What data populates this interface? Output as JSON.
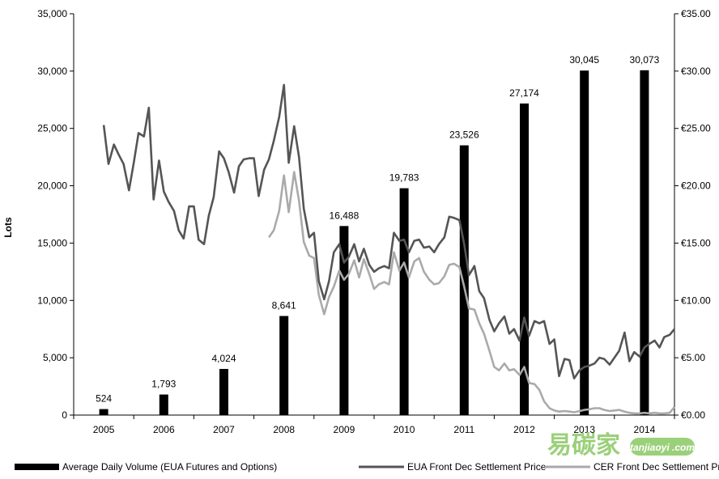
{
  "chart_data": {
    "type": "bar+line",
    "ylabel_left": "Lots",
    "ylim_left": [
      0,
      35000
    ],
    "yticks_left": [
      "0",
      "5,000",
      "10,000",
      "15,000",
      "20,000",
      "25,000",
      "30,000",
      "35,000"
    ],
    "ylim_right": [
      0,
      35
    ],
    "yticks_right": [
      "€0.00",
      "€5.00",
      "€10.00",
      "€15.00",
      "€20.00",
      "€25.00",
      "€30.00",
      "€35.00"
    ],
    "categories": [
      "2005",
      "2006",
      "2007",
      "2008",
      "2009",
      "2010",
      "2011",
      "2012",
      "2013",
      "2014"
    ],
    "bars": {
      "name": "Average Daily Volume (EUA Futures and Options)",
      "color": "#000000",
      "values": [
        524,
        1793,
        4024,
        8641,
        16488,
        19783,
        23526,
        27174,
        30045,
        30073
      ],
      "labels": [
        "524",
        "1,793",
        "4,024",
        "8,641",
        "16,488",
        "19,783",
        "23,526",
        "27,174",
        "30,045",
        "30,073"
      ]
    },
    "eua": {
      "name": "EUA Front Dec Settlement Price",
      "color": "#555555",
      "points": [
        [
          2005.0,
          25.3
        ],
        [
          2005.08,
          21.9
        ],
        [
          2005.17,
          23.6
        ],
        [
          2005.25,
          22.7
        ],
        [
          2005.33,
          21.9
        ],
        [
          2005.42,
          19.6
        ],
        [
          2005.5,
          22.0
        ],
        [
          2005.58,
          24.6
        ],
        [
          2005.67,
          24.3
        ],
        [
          2005.75,
          26.8
        ],
        [
          2005.83,
          18.8
        ],
        [
          2005.92,
          22.2
        ],
        [
          2006.0,
          19.5
        ],
        [
          2006.08,
          18.6
        ],
        [
          2006.17,
          17.8
        ],
        [
          2006.25,
          16.1
        ],
        [
          2006.33,
          15.4
        ],
        [
          2006.42,
          18.2
        ],
        [
          2006.5,
          18.2
        ],
        [
          2006.58,
          15.3
        ],
        [
          2006.67,
          14.9
        ],
        [
          2006.75,
          17.4
        ],
        [
          2006.83,
          19.0
        ],
        [
          2006.92,
          23.0
        ],
        [
          2007.0,
          22.4
        ],
        [
          2007.08,
          21.2
        ],
        [
          2007.17,
          19.4
        ],
        [
          2007.25,
          21.7
        ],
        [
          2007.33,
          22.3
        ],
        [
          2007.42,
          22.4
        ],
        [
          2007.5,
          22.4
        ],
        [
          2007.58,
          19.1
        ],
        [
          2007.67,
          21.4
        ],
        [
          2007.75,
          22.3
        ],
        [
          2007.83,
          23.9
        ],
        [
          2007.92,
          26.0
        ],
        [
          2008.0,
          28.8
        ],
        [
          2008.08,
          22.0
        ],
        [
          2008.17,
          25.2
        ],
        [
          2008.25,
          22.5
        ],
        [
          2008.33,
          18.0
        ],
        [
          2008.42,
          15.5
        ],
        [
          2008.5,
          15.9
        ],
        [
          2008.58,
          11.7
        ],
        [
          2008.67,
          10.1
        ],
        [
          2008.75,
          11.7
        ],
        [
          2008.83,
          14.2
        ],
        [
          2008.92,
          14.9
        ],
        [
          2009.0,
          13.3
        ],
        [
          2009.08,
          13.8
        ],
        [
          2009.17,
          14.9
        ],
        [
          2009.25,
          13.4
        ],
        [
          2009.33,
          14.5
        ],
        [
          2009.42,
          13.1
        ],
        [
          2009.5,
          12.5
        ],
        [
          2009.58,
          12.8
        ],
        [
          2009.67,
          13.0
        ],
        [
          2009.75,
          12.8
        ],
        [
          2009.83,
          15.9
        ],
        [
          2009.92,
          15.2
        ],
        [
          2010.0,
          15.3
        ],
        [
          2010.08,
          14.2
        ],
        [
          2010.17,
          15.2
        ],
        [
          2010.25,
          15.3
        ],
        [
          2010.33,
          14.6
        ],
        [
          2010.42,
          14.7
        ],
        [
          2010.5,
          14.2
        ],
        [
          2010.58,
          14.9
        ],
        [
          2010.67,
          15.5
        ],
        [
          2010.75,
          17.3
        ],
        [
          2010.83,
          17.2
        ],
        [
          2010.92,
          17.0
        ],
        [
          2011.0,
          14.9
        ],
        [
          2011.08,
          12.2
        ],
        [
          2011.17,
          13.0
        ],
        [
          2011.25,
          10.8
        ],
        [
          2011.33,
          10.2
        ],
        [
          2011.42,
          8.3
        ],
        [
          2011.5,
          7.3
        ],
        [
          2011.58,
          8.0
        ],
        [
          2011.67,
          8.6
        ],
        [
          2011.75,
          7.1
        ],
        [
          2011.83,
          7.5
        ],
        [
          2011.92,
          6.5
        ],
        [
          2012.0,
          8.5
        ],
        [
          2012.08,
          6.9
        ],
        [
          2012.17,
          8.2
        ],
        [
          2012.25,
          8.0
        ],
        [
          2012.33,
          8.2
        ],
        [
          2012.42,
          6.2
        ],
        [
          2012.5,
          6.6
        ],
        [
          2012.58,
          3.4
        ],
        [
          2012.67,
          4.9
        ],
        [
          2012.75,
          4.8
        ],
        [
          2012.83,
          3.2
        ],
        [
          2012.92,
          3.9
        ],
        [
          2013.0,
          4.2
        ],
        [
          2013.08,
          4.3
        ],
        [
          2013.17,
          4.5
        ],
        [
          2013.25,
          5.0
        ],
        [
          2013.33,
          4.9
        ],
        [
          2013.42,
          4.4
        ],
        [
          2013.5,
          5.0
        ],
        [
          2013.58,
          5.6
        ],
        [
          2013.67,
          7.2
        ],
        [
          2013.75,
          4.7
        ],
        [
          2013.83,
          5.5
        ],
        [
          2013.92,
          5.1
        ],
        [
          2014.0,
          5.9
        ],
        [
          2014.08,
          6.2
        ],
        [
          2014.17,
          6.5
        ],
        [
          2014.25,
          5.9
        ],
        [
          2014.33,
          6.8
        ],
        [
          2014.42,
          7.0
        ],
        [
          2014.5,
          7.5
        ]
      ]
    },
    "cer": {
      "name": "CER Front Dec Settlement Price",
      "color": "#aaaaaa",
      "points": [
        [
          2007.75,
          15.5
        ],
        [
          2007.83,
          16.1
        ],
        [
          2007.92,
          17.8
        ],
        [
          2008.0,
          20.9
        ],
        [
          2008.08,
          17.7
        ],
        [
          2008.17,
          21.2
        ],
        [
          2008.25,
          18.7
        ],
        [
          2008.33,
          15.1
        ],
        [
          2008.42,
          13.9
        ],
        [
          2008.5,
          13.7
        ],
        [
          2008.58,
          10.5
        ],
        [
          2008.67,
          8.8
        ],
        [
          2008.75,
          10.3
        ],
        [
          2008.83,
          11.2
        ],
        [
          2008.92,
          12.6
        ],
        [
          2009.0,
          11.8
        ],
        [
          2009.08,
          12.3
        ],
        [
          2009.17,
          13.5
        ],
        [
          2009.25,
          12.0
        ],
        [
          2009.33,
          13.6
        ],
        [
          2009.42,
          12.3
        ],
        [
          2009.5,
          11.0
        ],
        [
          2009.58,
          11.4
        ],
        [
          2009.67,
          11.6
        ],
        [
          2009.75,
          11.4
        ],
        [
          2009.83,
          14.2
        ],
        [
          2009.92,
          12.6
        ],
        [
          2010.0,
          13.3
        ],
        [
          2010.08,
          12.0
        ],
        [
          2010.17,
          13.4
        ],
        [
          2010.25,
          13.7
        ],
        [
          2010.33,
          12.5
        ],
        [
          2010.42,
          11.8
        ],
        [
          2010.5,
          11.4
        ],
        [
          2010.58,
          11.5
        ],
        [
          2010.67,
          12.1
        ],
        [
          2010.75,
          13.1
        ],
        [
          2010.83,
          13.2
        ],
        [
          2010.92,
          12.9
        ],
        [
          2011.0,
          11.2
        ],
        [
          2011.08,
          9.3
        ],
        [
          2011.17,
          9.2
        ],
        [
          2011.25,
          8.0
        ],
        [
          2011.33,
          7.1
        ],
        [
          2011.42,
          5.6
        ],
        [
          2011.5,
          4.2
        ],
        [
          2011.58,
          3.9
        ],
        [
          2011.67,
          4.5
        ],
        [
          2011.75,
          3.9
        ],
        [
          2011.83,
          4.0
        ],
        [
          2011.92,
          3.5
        ],
        [
          2012.0,
          4.2
        ],
        [
          2012.08,
          2.8
        ],
        [
          2012.17,
          2.7
        ],
        [
          2012.25,
          2.2
        ],
        [
          2012.33,
          1.2
        ],
        [
          2012.42,
          0.6
        ],
        [
          2012.5,
          0.4
        ],
        [
          2012.58,
          0.3
        ],
        [
          2012.67,
          0.35
        ],
        [
          2012.75,
          0.3
        ],
        [
          2012.83,
          0.25
        ],
        [
          2012.92,
          0.35
        ],
        [
          2013.0,
          0.45
        ],
        [
          2013.08,
          0.5
        ],
        [
          2013.17,
          0.6
        ],
        [
          2013.25,
          0.6
        ],
        [
          2013.33,
          0.45
        ],
        [
          2013.42,
          0.35
        ],
        [
          2013.5,
          0.4
        ],
        [
          2013.58,
          0.45
        ],
        [
          2013.67,
          0.3
        ],
        [
          2013.75,
          0.2
        ],
        [
          2013.83,
          0.15
        ],
        [
          2013.92,
          0.15
        ],
        [
          2014.0,
          0.2
        ],
        [
          2014.08,
          0.15
        ],
        [
          2014.17,
          0.2
        ],
        [
          2014.25,
          0.15
        ],
        [
          2014.33,
          0.15
        ],
        [
          2014.42,
          0.2
        ],
        [
          2014.5,
          0.7
        ]
      ]
    },
    "legend": [
      "Average Daily Volume (EUA Futures and Options)",
      "EUA Front Dec Settlement Price",
      "CER Front Dec Settlement Price"
    ],
    "legend_position": "bottom",
    "grid": false
  },
  "watermark": {
    "text": "易碳家",
    "sub": "tanjiaoyi .com",
    "color": "#9bd07a"
  }
}
